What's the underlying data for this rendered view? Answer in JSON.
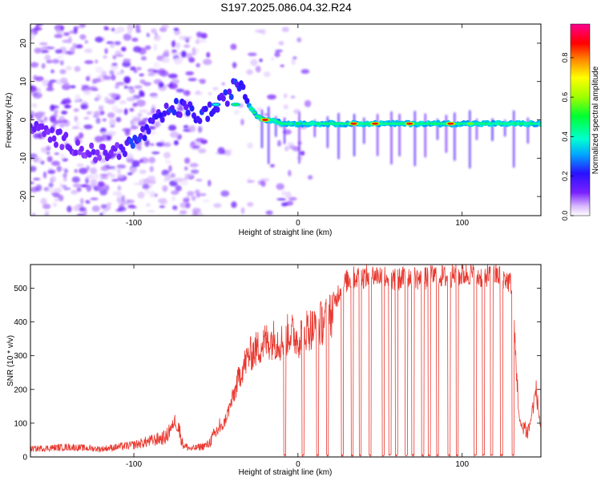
{
  "title": "S197.2025.086.04.32.R24",
  "colors": {
    "spec_trace": "#2a9df4",
    "snr_trace": "#e8382f",
    "axis": "#000000",
    "background": "#ffffff"
  },
  "chart_data": [
    {
      "type": "heatmap",
      "xlabel": "Height of straight line (km)",
      "ylabel": "Frequency (Hz)",
      "xlim": [
        -163,
        148
      ],
      "ylim": [
        -25,
        25
      ],
      "x_ticks": [
        -100,
        0,
        100
      ],
      "y_ticks": [
        -20,
        -10,
        0,
        10,
        20
      ],
      "grid": false,
      "colorbar": {
        "label": "Normalized spectral amplitude",
        "range": [
          0,
          0.97
        ],
        "ticks": [
          0.0,
          0.2,
          0.4,
          0.6,
          0.8
        ],
        "tick_labels": [
          "0.0",
          "0.2",
          "0.4",
          "0.6",
          "0.8"
        ],
        "colormap": "rainbow (white→violet→blue→cyan→green→yellow→red→magenta)"
      },
      "signal_trace": {
        "x": [
          -163,
          -150,
          -140,
          -130,
          -120,
          -110,
          -100,
          -95,
          -90,
          -85,
          -80,
          -75,
          -70,
          -65,
          -60,
          -55,
          -50,
          -45,
          -40,
          -35,
          -30,
          -25,
          -20,
          -15,
          -10,
          -5,
          0,
          20,
          40,
          60,
          80,
          100,
          120,
          148
        ],
        "y": [
          -2,
          -4,
          -6,
          -8,
          -9,
          -8,
          -6,
          -4,
          -2,
          0,
          2,
          3,
          3,
          2,
          1,
          2,
          3,
          5,
          8,
          10,
          4,
          1,
          0,
          0,
          -1,
          -1,
          -1,
          -1,
          -1,
          -1,
          -1,
          -1,
          -1,
          -1
        ]
      },
      "peaks": [
        {
          "x": -20,
          "y": 0,
          "amplitude": 0.9
        },
        {
          "x": 34,
          "y": -1,
          "amplitude": 0.9
        },
        {
          "x": 47,
          "y": -1,
          "amplitude": 0.9
        },
        {
          "x": 68,
          "y": -1,
          "amplitude": 0.9
        },
        {
          "x": 93,
          "y": -1,
          "amplitude": 0.9
        },
        {
          "x": 105,
          "y": -1,
          "amplitude": 0.6
        },
        {
          "x": 0,
          "y": -1,
          "amplitude": 0.5
        },
        {
          "x": -38,
          "y": 4,
          "amplitude": 0.5
        },
        {
          "x": -50,
          "y": 4,
          "amplitude": 0.4
        }
      ]
    },
    {
      "type": "line",
      "xlabel": "Height of straight line (km)",
      "ylabel": "SNR (10 * v/v)",
      "xlim": [
        -163,
        148
      ],
      "ylim": [
        0,
        570
      ],
      "x_ticks": [
        -100,
        0,
        100
      ],
      "y_ticks": [
        0,
        100,
        200,
        300,
        400,
        500
      ],
      "grid": false,
      "series": [
        {
          "x": [
            -163,
            -140,
            -120,
            -100,
            -90,
            -80,
            -75,
            -70,
            -65,
            -60,
            -55,
            -50,
            -45,
            -40,
            -35,
            -30,
            -25,
            -20,
            -15,
            -10,
            -5,
            0,
            5,
            10,
            15,
            20,
            25,
            30,
            35,
            40,
            45,
            50,
            55,
            60,
            65,
            70,
            75,
            80,
            85,
            90,
            95,
            100,
            105,
            110,
            115,
            120,
            125,
            130,
            135,
            140,
            145,
            148
          ],
          "y": [
            20,
            25,
            20,
            30,
            40,
            50,
            110,
            30,
            20,
            25,
            30,
            60,
            100,
            170,
            250,
            300,
            320,
            340,
            350,
            340,
            370,
            350,
            380,
            380,
            400,
            420,
            500,
            530,
            540,
            540,
            545,
            545,
            540,
            530,
            540,
            545,
            530,
            540,
            545,
            540,
            545,
            545,
            550,
            540,
            545,
            545,
            540,
            520,
            100,
            60,
            200,
            80
          ]
        }
      ],
      "dropouts_x": [
        -8,
        3,
        12,
        18,
        27,
        33,
        38,
        44,
        52,
        56,
        60,
        66,
        70,
        76,
        80,
        85,
        92,
        97,
        108,
        113,
        118,
        124,
        131
      ]
    }
  ]
}
